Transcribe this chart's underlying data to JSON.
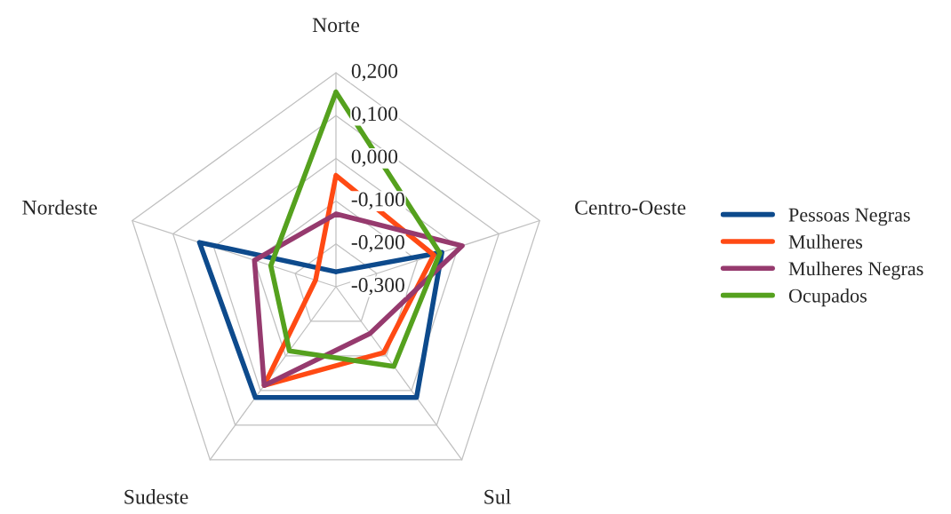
{
  "chart_data": {
    "type": "radar",
    "categories": [
      "Norte",
      "Centro-Oeste",
      "Sul",
      "Sudeste",
      "Nordeste"
    ],
    "series": [
      {
        "name": "Pessoas Negras",
        "color": "#0d4a8c",
        "values": [
          -0.265,
          -0.04,
          0.02,
          0.02,
          0.035
        ]
      },
      {
        "name": "Mulheres",
        "color": "#ff4a14",
        "values": [
          -0.04,
          -0.06,
          -0.11,
          -0.015,
          -0.25
        ]
      },
      {
        "name": "Mulheres Negras",
        "color": "#963a6e",
        "values": [
          -0.13,
          0.01,
          -0.165,
          -0.015,
          -0.1
        ]
      },
      {
        "name": "Ocupados",
        "color": "#55a11e",
        "values": [
          0.155,
          -0.045,
          -0.07,
          -0.115,
          -0.14
        ]
      }
    ],
    "ylim": [
      -0.3,
      0.2
    ],
    "yticks": [
      {
        "value": 0.2,
        "label": "0,200"
      },
      {
        "value": 0.1,
        "label": "0,100"
      },
      {
        "value": 0.0,
        "label": "0,000"
      },
      {
        "value": -0.1,
        "label": "-0,100"
      },
      {
        "value": -0.2,
        "label": "-0,200"
      },
      {
        "value": -0.3,
        "label": "-0,300"
      }
    ],
    "grid": true,
    "legend": "right"
  }
}
